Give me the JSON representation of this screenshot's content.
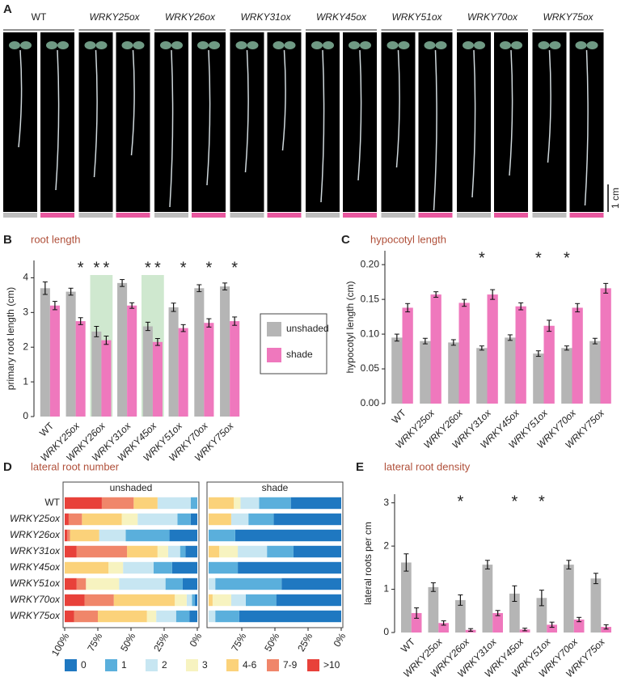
{
  "photos": {
    "panel": "A",
    "genotypes": [
      "WT",
      "WRKY25ox",
      "WRKY26ox",
      "WRKY31ox",
      "WRKY45ox",
      "WRKY51ox",
      "WRKY70ox",
      "WRKY75ox"
    ],
    "strip_colors": [
      "#bdbdbd",
      "#e8589f"
    ],
    "scale_bar": "1 cm"
  },
  "chart_data": [
    {
      "type": "bar",
      "panel": "B",
      "title": "root length",
      "y_label": "primary root length (cm)",
      "categories": [
        "WT",
        "WRKY25ox",
        "WRKY26ox",
        "WRKY31ox",
        "WRKY45ox",
        "WRKY51ox",
        "WRKY70ox",
        "WRKY75ox"
      ],
      "ylim": [
        0,
        4.5
      ],
      "yticks": [
        0,
        1,
        2,
        3,
        4
      ],
      "marker": "*",
      "highlight": [
        false,
        false,
        true,
        false,
        true,
        false,
        false,
        false
      ],
      "highlight_color": "#cfe8cf",
      "series": [
        {
          "name": "unshaded",
          "color": "#b5b5b5",
          "marker_color": "#222222",
          "values": [
            3.7,
            3.6,
            2.45,
            3.85,
            2.6,
            3.15,
            3.7,
            3.75
          ],
          "errors": [
            0.18,
            0.1,
            0.15,
            0.1,
            0.12,
            0.12,
            0.1,
            0.1
          ],
          "significant": [
            false,
            false,
            true,
            false,
            true,
            false,
            false,
            false
          ]
        },
        {
          "name": "shade",
          "color": "#ef78bd",
          "marker_color": "#e0483a",
          "values": [
            3.2,
            2.75,
            2.2,
            3.2,
            2.15,
            2.55,
            2.7,
            2.75
          ],
          "errors": [
            0.12,
            0.1,
            0.12,
            0.08,
            0.1,
            0.1,
            0.12,
            0.12
          ],
          "significant": [
            false,
            true,
            true,
            false,
            true,
            true,
            true,
            true
          ]
        }
      ]
    },
    {
      "type": "bar",
      "panel": "C",
      "title": "hypocotyl length",
      "y_label": "hypocotyl length (cm)",
      "categories": [
        "WT",
        "WRKY25ox",
        "WRKY26ox",
        "WRKY31ox",
        "WRKY45ox",
        "WRKY51ox",
        "WRKY70ox",
        "WRKY75ox"
      ],
      "ylim": [
        0,
        0.22
      ],
      "yticks": [
        {
          "value": 0,
          "label": "0.00"
        },
        {
          "value": 0.05,
          "label": "0.05"
        },
        {
          "value": 0.1,
          "label": "0.10"
        },
        {
          "value": 0.15,
          "label": "0.15"
        },
        {
          "value": 0.2,
          "label": "0.20"
        }
      ],
      "marker": "*",
      "series": [
        {
          "color": "#b5b5b5",
          "marker_color": "#222222",
          "values": [
            0.095,
            0.09,
            0.088,
            0.08,
            0.095,
            0.072,
            0.08,
            0.09
          ],
          "errors": [
            0.005,
            0.004,
            0.004,
            0.003,
            0.004,
            0.004,
            0.003,
            0.004
          ],
          "significant": [
            false,
            false,
            false,
            true,
            false,
            true,
            true,
            false
          ]
        },
        {
          "color": "#ef78bd",
          "values": [
            0.138,
            0.157,
            0.145,
            0.157,
            0.14,
            0.112,
            0.138,
            0.166
          ],
          "errors": [
            0.006,
            0.004,
            0.005,
            0.007,
            0.005,
            0.008,
            0.006,
            0.007
          ]
        }
      ]
    },
    {
      "type": "stacked-barh",
      "panel": "D",
      "title": "lateral root number",
      "subtitle": "unshaded",
      "categories": [
        "WT",
        "WRKY25ox",
        "WRKY26ox",
        "WRKY31ox",
        "WRKY45ox",
        "WRKY51ox",
        "WRKY70ox",
        "WRKY75ox"
      ],
      "xlim": [
        100,
        0
      ],
      "xticks": [
        {
          "value": 100,
          "label": "100%"
        },
        {
          "value": 75,
          "label": "75%"
        },
        {
          "value": 50,
          "label": "50%"
        },
        {
          "value": 25,
          "label": "25%"
        },
        {
          "value": 0,
          "label": "0%"
        }
      ],
      "series": [
        {
          "name": "0",
          "color": "#1f78c1",
          "values": [
            0,
            5,
            21,
            9,
            19,
            11,
            2,
            6
          ]
        },
        {
          "name": "1",
          "color": "#5aafdc",
          "values": [
            5,
            10,
            33,
            4,
            14,
            13,
            2,
            10
          ]
        },
        {
          "name": "2",
          "color": "#c7e6f2",
          "values": [
            25,
            30,
            20,
            9,
            23,
            35,
            4,
            15
          ]
        },
        {
          "name": "3",
          "color": "#f7f3c0",
          "values": [
            0,
            12,
            0,
            8,
            11,
            25,
            9,
            7
          ]
        },
        {
          "name": "4-6",
          "color": "#fbd27a",
          "values": [
            18,
            30,
            22,
            23,
            33,
            0,
            46,
            37
          ]
        },
        {
          "name": "7-9",
          "color": "#f0866a",
          "values": [
            24,
            10,
            2,
            38,
            0,
            7,
            22,
            18
          ]
        },
        {
          "name": ">10",
          "color": "#e8413a",
          "values": [
            28,
            3,
            2,
            9,
            0,
            9,
            15,
            7
          ]
        }
      ]
    },
    {
      "type": "stacked-barh",
      "subtitle": "shade",
      "xlim": [
        100,
        0
      ],
      "xticks": [
        {
          "value": 75,
          "label": "75%"
        },
        {
          "value": 50,
          "label": "50%"
        },
        {
          "value": 25,
          "label": "25%"
        },
        {
          "value": 0,
          "label": "0%"
        }
      ],
      "series": [
        {
          "color": "#1f78c1",
          "values": [
            38,
            51,
            80,
            36,
            78,
            45,
            49,
            77
          ]
        },
        {
          "color": "#5aafdc",
          "values": [
            24,
            19,
            20,
            20,
            22,
            50,
            23,
            18
          ]
        },
        {
          "color": "#c7e6f2",
          "values": [
            14,
            13,
            0,
            22,
            0,
            5,
            11,
            5
          ]
        },
        {
          "color": "#f7f3c0",
          "values": [
            5,
            0,
            0,
            14,
            0,
            0,
            14,
            0
          ]
        },
        {
          "color": "#fbd27a",
          "values": [
            19,
            17,
            0,
            8,
            0,
            0,
            3,
            0
          ]
        }
      ]
    },
    {
      "type": "bar",
      "panel": "E",
      "title": "lateral root density",
      "y_label": "lateral roots per cm",
      "categories": [
        "WT",
        "WRKY25ox",
        "WRKY26ox",
        "WRKY31ox",
        "WRKY45ox",
        "WRKY51ox",
        "WRKY70ox",
        "WRKY75ox"
      ],
      "ylim": [
        0,
        3.2
      ],
      "yticks": [
        0,
        1,
        2,
        3
      ],
      "marker": "*",
      "series": [
        {
          "color": "#b5b5b5",
          "marker_color": "#222222",
          "values": [
            1.62,
            1.05,
            0.75,
            1.57,
            0.9,
            0.8,
            1.57,
            1.25
          ],
          "errors": [
            0.2,
            0.1,
            0.12,
            0.1,
            0.18,
            0.18,
            0.1,
            0.12
          ],
          "significant": [
            false,
            false,
            true,
            false,
            true,
            true,
            false,
            false
          ]
        },
        {
          "color": "#ef78bd",
          "values": [
            0.45,
            0.22,
            0.06,
            0.45,
            0.07,
            0.18,
            0.3,
            0.13
          ],
          "errors": [
            0.12,
            0.05,
            0.03,
            0.06,
            0.03,
            0.06,
            0.05,
            0.05
          ]
        }
      ]
    }
  ]
}
